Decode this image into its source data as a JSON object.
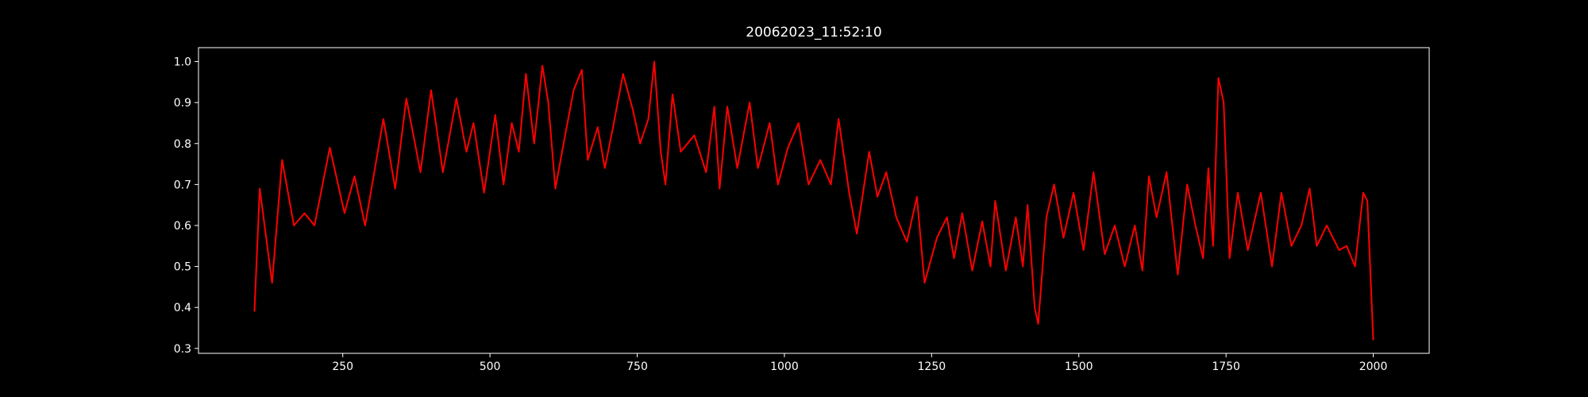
{
  "chart_data": {
    "type": "line",
    "title": "20062023_11:52:10",
    "x": [
      100,
      109,
      130,
      147,
      167,
      185,
      202,
      228,
      253,
      270,
      288,
      319,
      339,
      358,
      382,
      400,
      420,
      443,
      460,
      472,
      490,
      509,
      523,
      537,
      549,
      561,
      575,
      589,
      599,
      611,
      625,
      642,
      656,
      666,
      683,
      695,
      709,
      726,
      743,
      755,
      769,
      779,
      790,
      798,
      810,
      824,
      847,
      867,
      881,
      890,
      903,
      920,
      941,
      955,
      975,
      989,
      1006,
      1024,
      1041,
      1061,
      1079,
      1092,
      1110,
      1123,
      1144,
      1158,
      1173,
      1190,
      1208,
      1225,
      1238,
      1259,
      1276,
      1288,
      1302,
      1319,
      1336,
      1350,
      1358,
      1376,
      1393,
      1405,
      1413,
      1425,
      1431,
      1445,
      1458,
      1474,
      1491,
      1508,
      1525,
      1544,
      1561,
      1578,
      1595,
      1608,
      1619,
      1632,
      1649,
      1668,
      1684,
      1698,
      1711,
      1720,
      1728,
      1737,
      1746,
      1756,
      1770,
      1787,
      1809,
      1828,
      1844,
      1861,
      1878,
      1892,
      1904,
      1921,
      1942,
      1955,
      1969,
      1983,
      1990,
      2000
    ],
    "values": [
      0.39,
      0.69,
      0.46,
      0.76,
      0.6,
      0.63,
      0.6,
      0.79,
      0.63,
      0.72,
      0.6,
      0.86,
      0.69,
      0.91,
      0.73,
      0.93,
      0.73,
      0.91,
      0.78,
      0.85,
      0.68,
      0.87,
      0.7,
      0.85,
      0.78,
      0.97,
      0.8,
      0.99,
      0.9,
      0.69,
      0.8,
      0.93,
      0.98,
      0.76,
      0.84,
      0.74,
      0.84,
      0.97,
      0.88,
      0.8,
      0.86,
      1.0,
      0.78,
      0.7,
      0.92,
      0.78,
      0.82,
      0.73,
      0.89,
      0.69,
      0.89,
      0.74,
      0.9,
      0.74,
      0.85,
      0.7,
      0.79,
      0.85,
      0.7,
      0.76,
      0.7,
      0.86,
      0.68,
      0.58,
      0.78,
      0.67,
      0.73,
      0.62,
      0.56,
      0.67,
      0.46,
      0.57,
      0.62,
      0.52,
      0.63,
      0.49,
      0.61,
      0.5,
      0.66,
      0.49,
      0.62,
      0.5,
      0.65,
      0.4,
      0.36,
      0.62,
      0.7,
      0.57,
      0.68,
      0.54,
      0.73,
      0.53,
      0.6,
      0.5,
      0.6,
      0.49,
      0.72,
      0.62,
      0.73,
      0.48,
      0.7,
      0.6,
      0.52,
      0.74,
      0.55,
      0.96,
      0.9,
      0.52,
      0.68,
      0.54,
      0.68,
      0.5,
      0.68,
      0.55,
      0.6,
      0.69,
      0.55,
      0.6,
      0.54,
      0.55,
      0.5,
      0.68,
      0.66,
      0.32
    ],
    "color": "#ff0000",
    "xlim": [
      5,
      2095
    ],
    "xticks": [
      250,
      500,
      750,
      1000,
      1250,
      1500,
      1750,
      2000
    ],
    "ylim": [
      0.288,
      1.034
    ],
    "yticks": [
      0.3,
      0.4,
      0.5,
      0.6,
      0.7,
      0.8,
      0.9,
      {
        "value": 1,
        "label": "1.0"
      }
    ]
  }
}
